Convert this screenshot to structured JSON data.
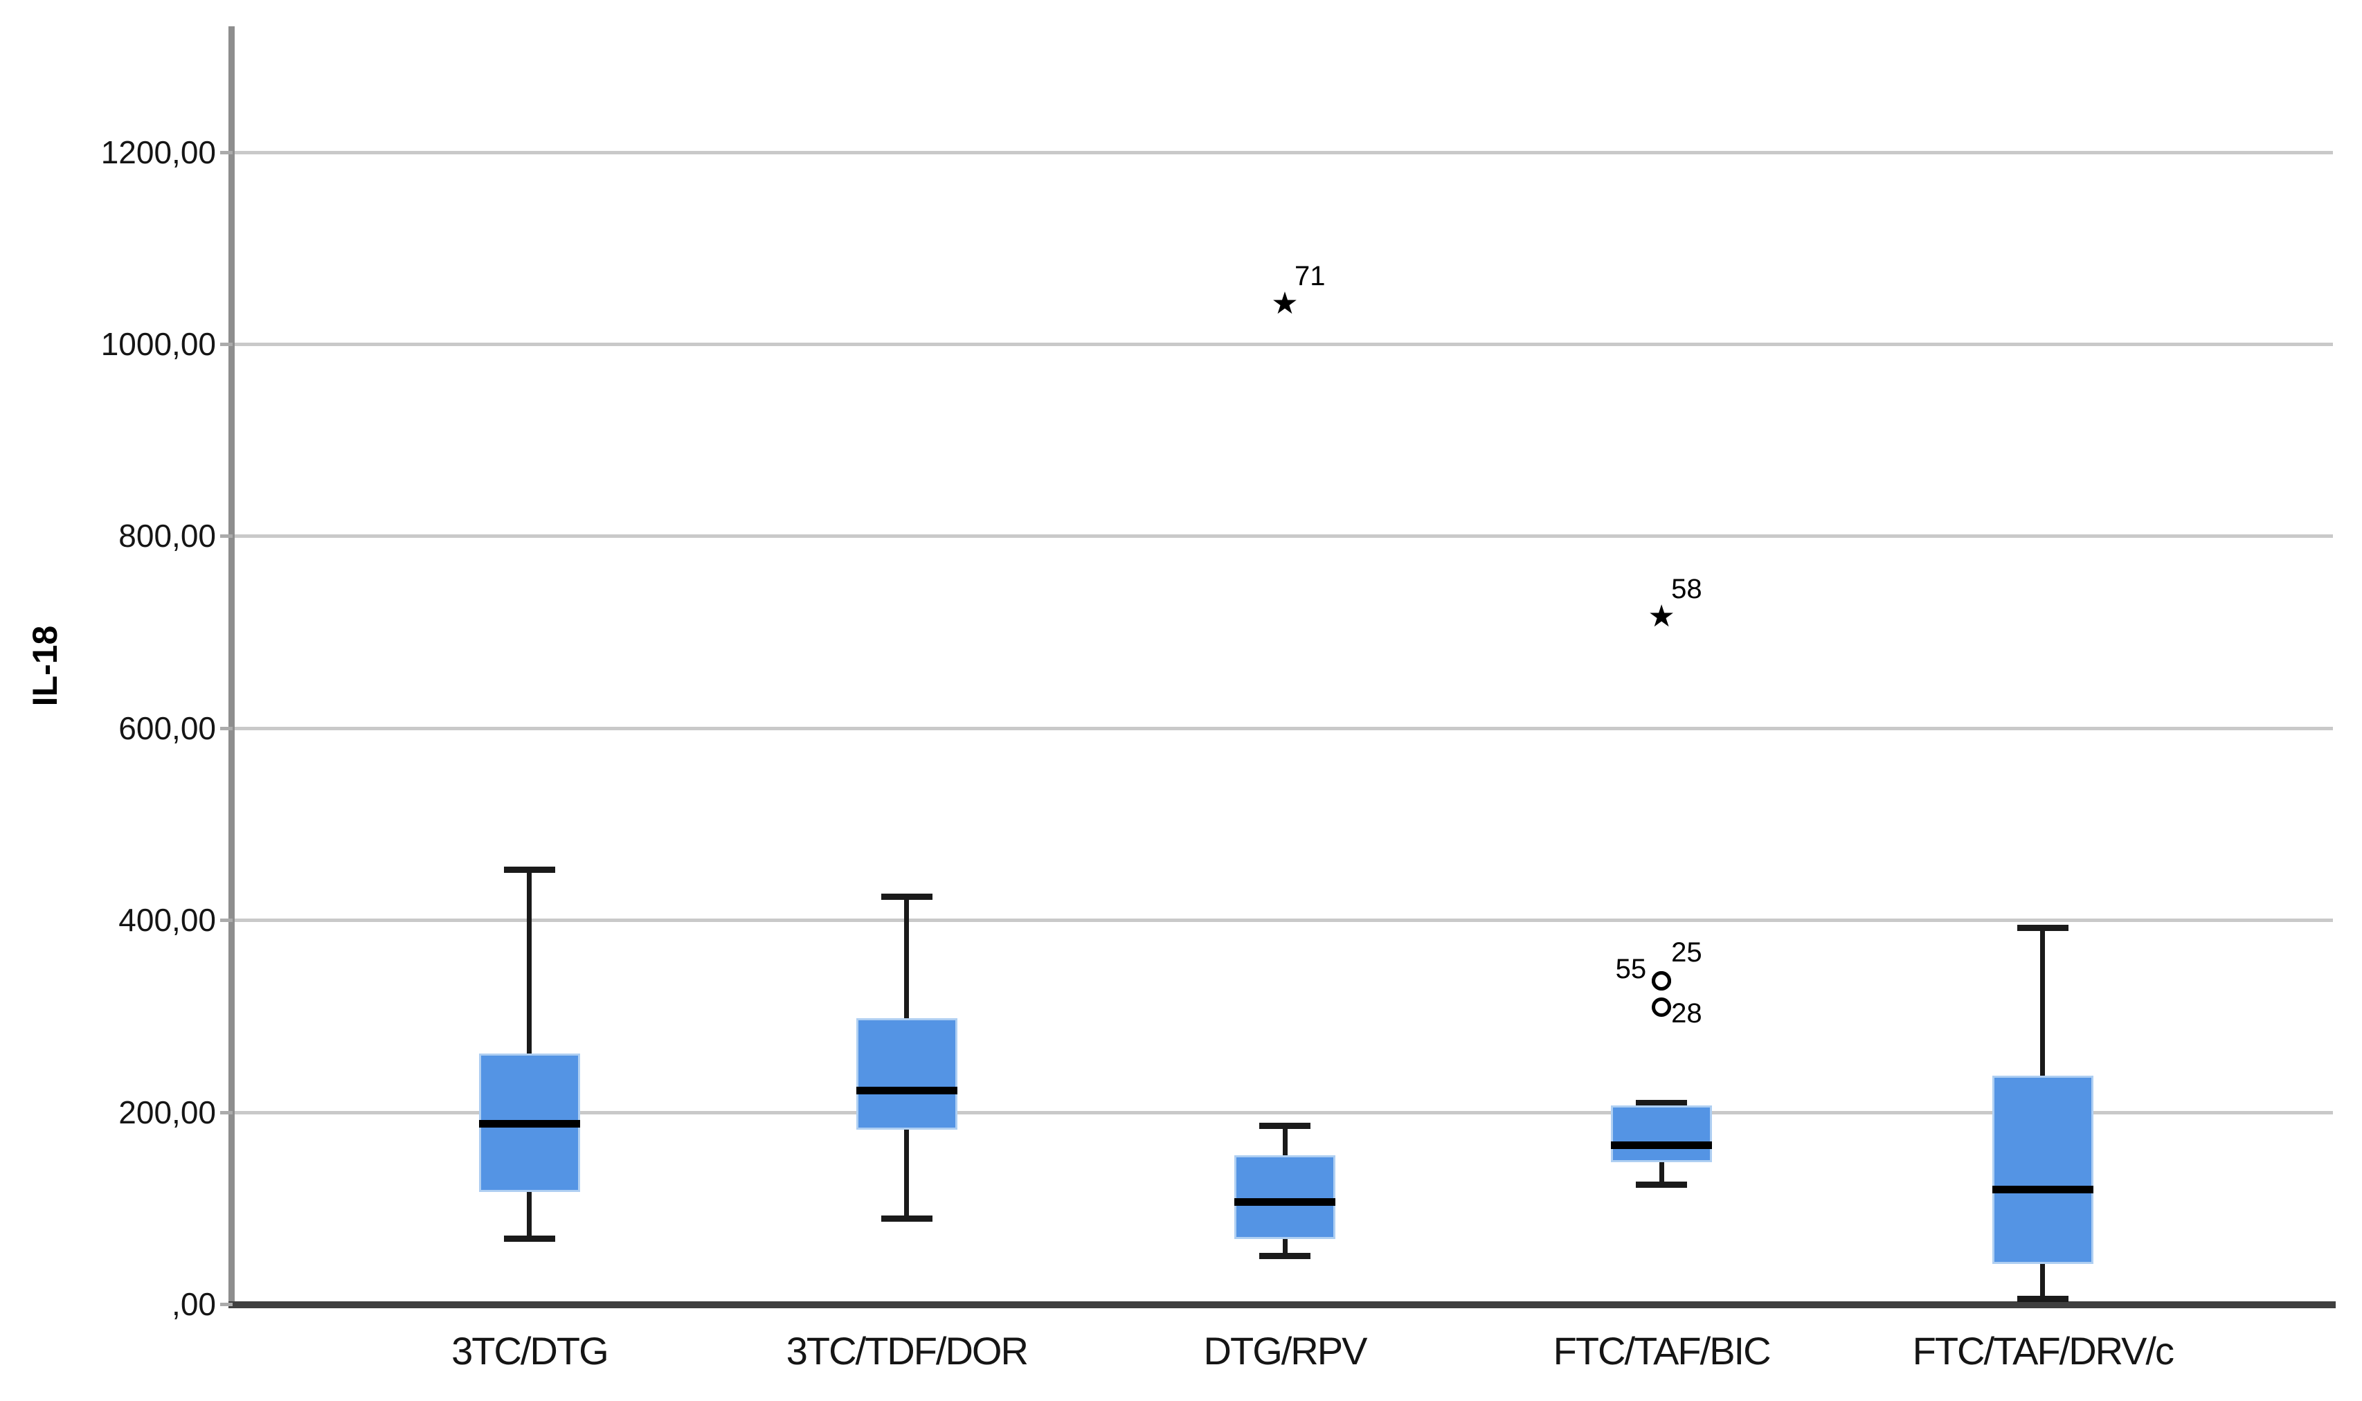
{
  "figure": {
    "ylabel": "IL-18"
  },
  "colors": {
    "box_fill": "#5494E4",
    "box_border": "#AFCFF2",
    "median": "#000000",
    "whisker": "#1a1a1a",
    "gridline": "#C9C9C9",
    "y_axis": "#8E8E8E",
    "x_axis": "#3F3F3F",
    "text": "#151515",
    "background": "#FFFFFF"
  },
  "chart_data": {
    "type": "box",
    "title": "",
    "xlabel": "",
    "ylabel": "IL-18",
    "ylim": [
      0,
      1331
    ],
    "grid": true,
    "legend": null,
    "yticks": [
      {
        "value": 0,
        "label": ",00"
      },
      {
        "value": 200,
        "label": "200,00"
      },
      {
        "value": 400,
        "label": "400,00"
      },
      {
        "value": 600,
        "label": "600,00"
      },
      {
        "value": 800,
        "label": "800,00"
      },
      {
        "value": 1000,
        "label": "1000,00"
      },
      {
        "value": 1200,
        "label": "1200,00"
      }
    ],
    "categories": [
      "3TC/DTG",
      "3TC/TDF/DOR",
      "DTG/RPV",
      "FTC/TAF/BIC",
      "FTC/TAF/DRV/c"
    ],
    "boxes": [
      {
        "category": "3TC/DTG",
        "whisker_low": 68,
        "q1": 117,
        "median": 188,
        "q3": 261,
        "whisker_high": 453,
        "outliers": []
      },
      {
        "category": "3TC/TDF/DOR",
        "whisker_low": 89,
        "q1": 182,
        "median": 223,
        "q3": 298,
        "whisker_high": 425,
        "outliers": []
      },
      {
        "category": "DTG/RPV",
        "whisker_low": 50,
        "q1": 68,
        "median": 107,
        "q3": 155,
        "whisker_high": 186,
        "outliers": [
          {
            "value": 1041,
            "marker": "star",
            "label": "71",
            "label_pos": "top-right"
          }
        ]
      },
      {
        "category": "FTC/TAF/BIC",
        "whisker_low": 124,
        "q1": 148,
        "median": 166,
        "q3": 207,
        "whisker_high": 210,
        "outliers": [
          {
            "value": 715,
            "marker": "star",
            "label": "58",
            "label_pos": "top-right"
          },
          {
            "value": 337,
            "marker": "circle",
            "label": "55",
            "label_pos": "left"
          },
          {
            "value": 337,
            "marker": "circle",
            "label": "25",
            "label_pos": "top-right"
          },
          {
            "value": 309,
            "marker": "circle",
            "label": "28",
            "label_pos": "bottom-right"
          }
        ]
      },
      {
        "category": "FTC/TAF/DRV/c",
        "whisker_low": 5,
        "q1": 42,
        "median": 120,
        "q3": 238,
        "whisker_high": 392,
        "outliers": []
      }
    ]
  }
}
